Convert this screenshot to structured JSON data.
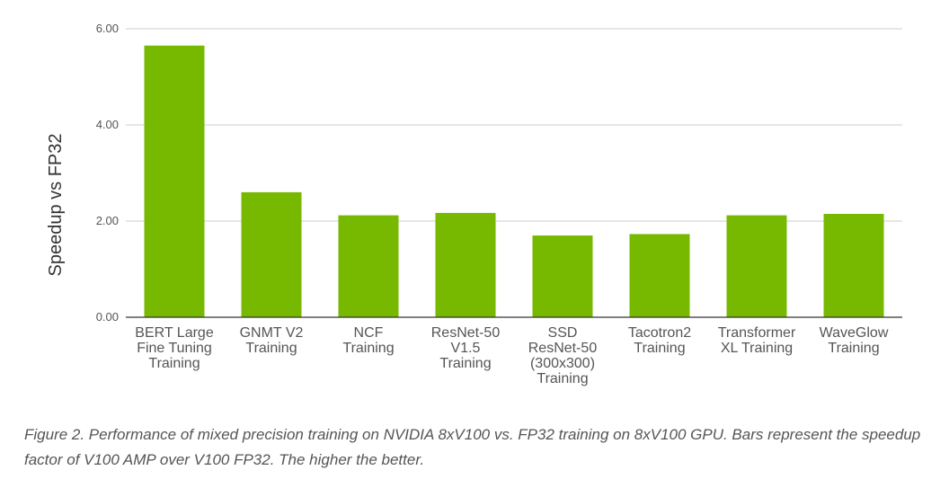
{
  "chart_data": {
    "type": "bar",
    "ylabel": "Speedup vs FP32",
    "ylim": [
      0,
      6
    ],
    "yticks": [
      "0.00",
      "2.00",
      "4.00",
      "6.00"
    ],
    "grid": true,
    "bar_color": "#76b900",
    "categories": [
      [
        "BERT Large",
        "Fine Tuning",
        "Training"
      ],
      [
        "GNMT V2",
        "Training"
      ],
      [
        "NCF",
        "Training"
      ],
      [
        "ResNet-50",
        "V1.5",
        "Training"
      ],
      [
        "SSD",
        "ResNet-50",
        "(300x300)",
        "Training"
      ],
      [
        "Tacotron2",
        "Training"
      ],
      [
        "Transformer",
        "XL Training"
      ],
      [
        "WaveGlow",
        "Training"
      ]
    ],
    "values": [
      5.65,
      2.6,
      2.12,
      2.17,
      1.7,
      1.73,
      2.12,
      2.15
    ]
  },
  "caption": "Figure 2. Performance of mixed precision training on NVIDIA 8xV100 vs. FP32 training on 8xV100 GPU. Bars represent the speedup factor of V100 AMP over V100 FP32. The higher the better."
}
